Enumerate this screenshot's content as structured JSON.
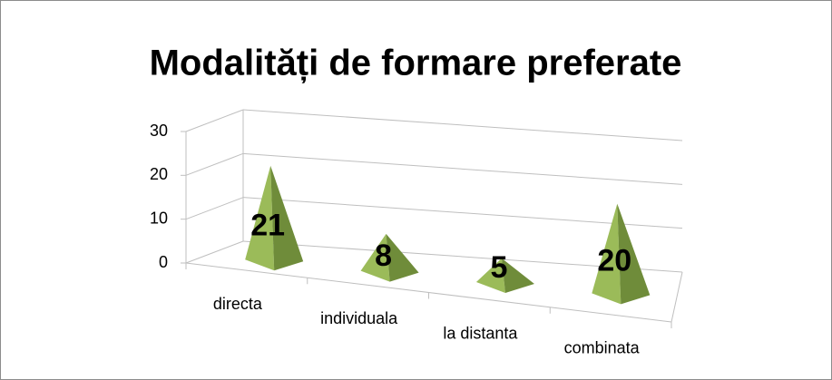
{
  "chart_data": {
    "type": "pyramid3d",
    "title": "Modalități de formare preferate",
    "categories": [
      "directa",
      "individuala",
      "la distanta",
      "combinata"
    ],
    "values": [
      21,
      8,
      5,
      20
    ],
    "color": "#9bbb59",
    "ylim": [
      0,
      30
    ],
    "yticks": [
      0,
      10,
      20,
      30
    ],
    "grid": true
  }
}
